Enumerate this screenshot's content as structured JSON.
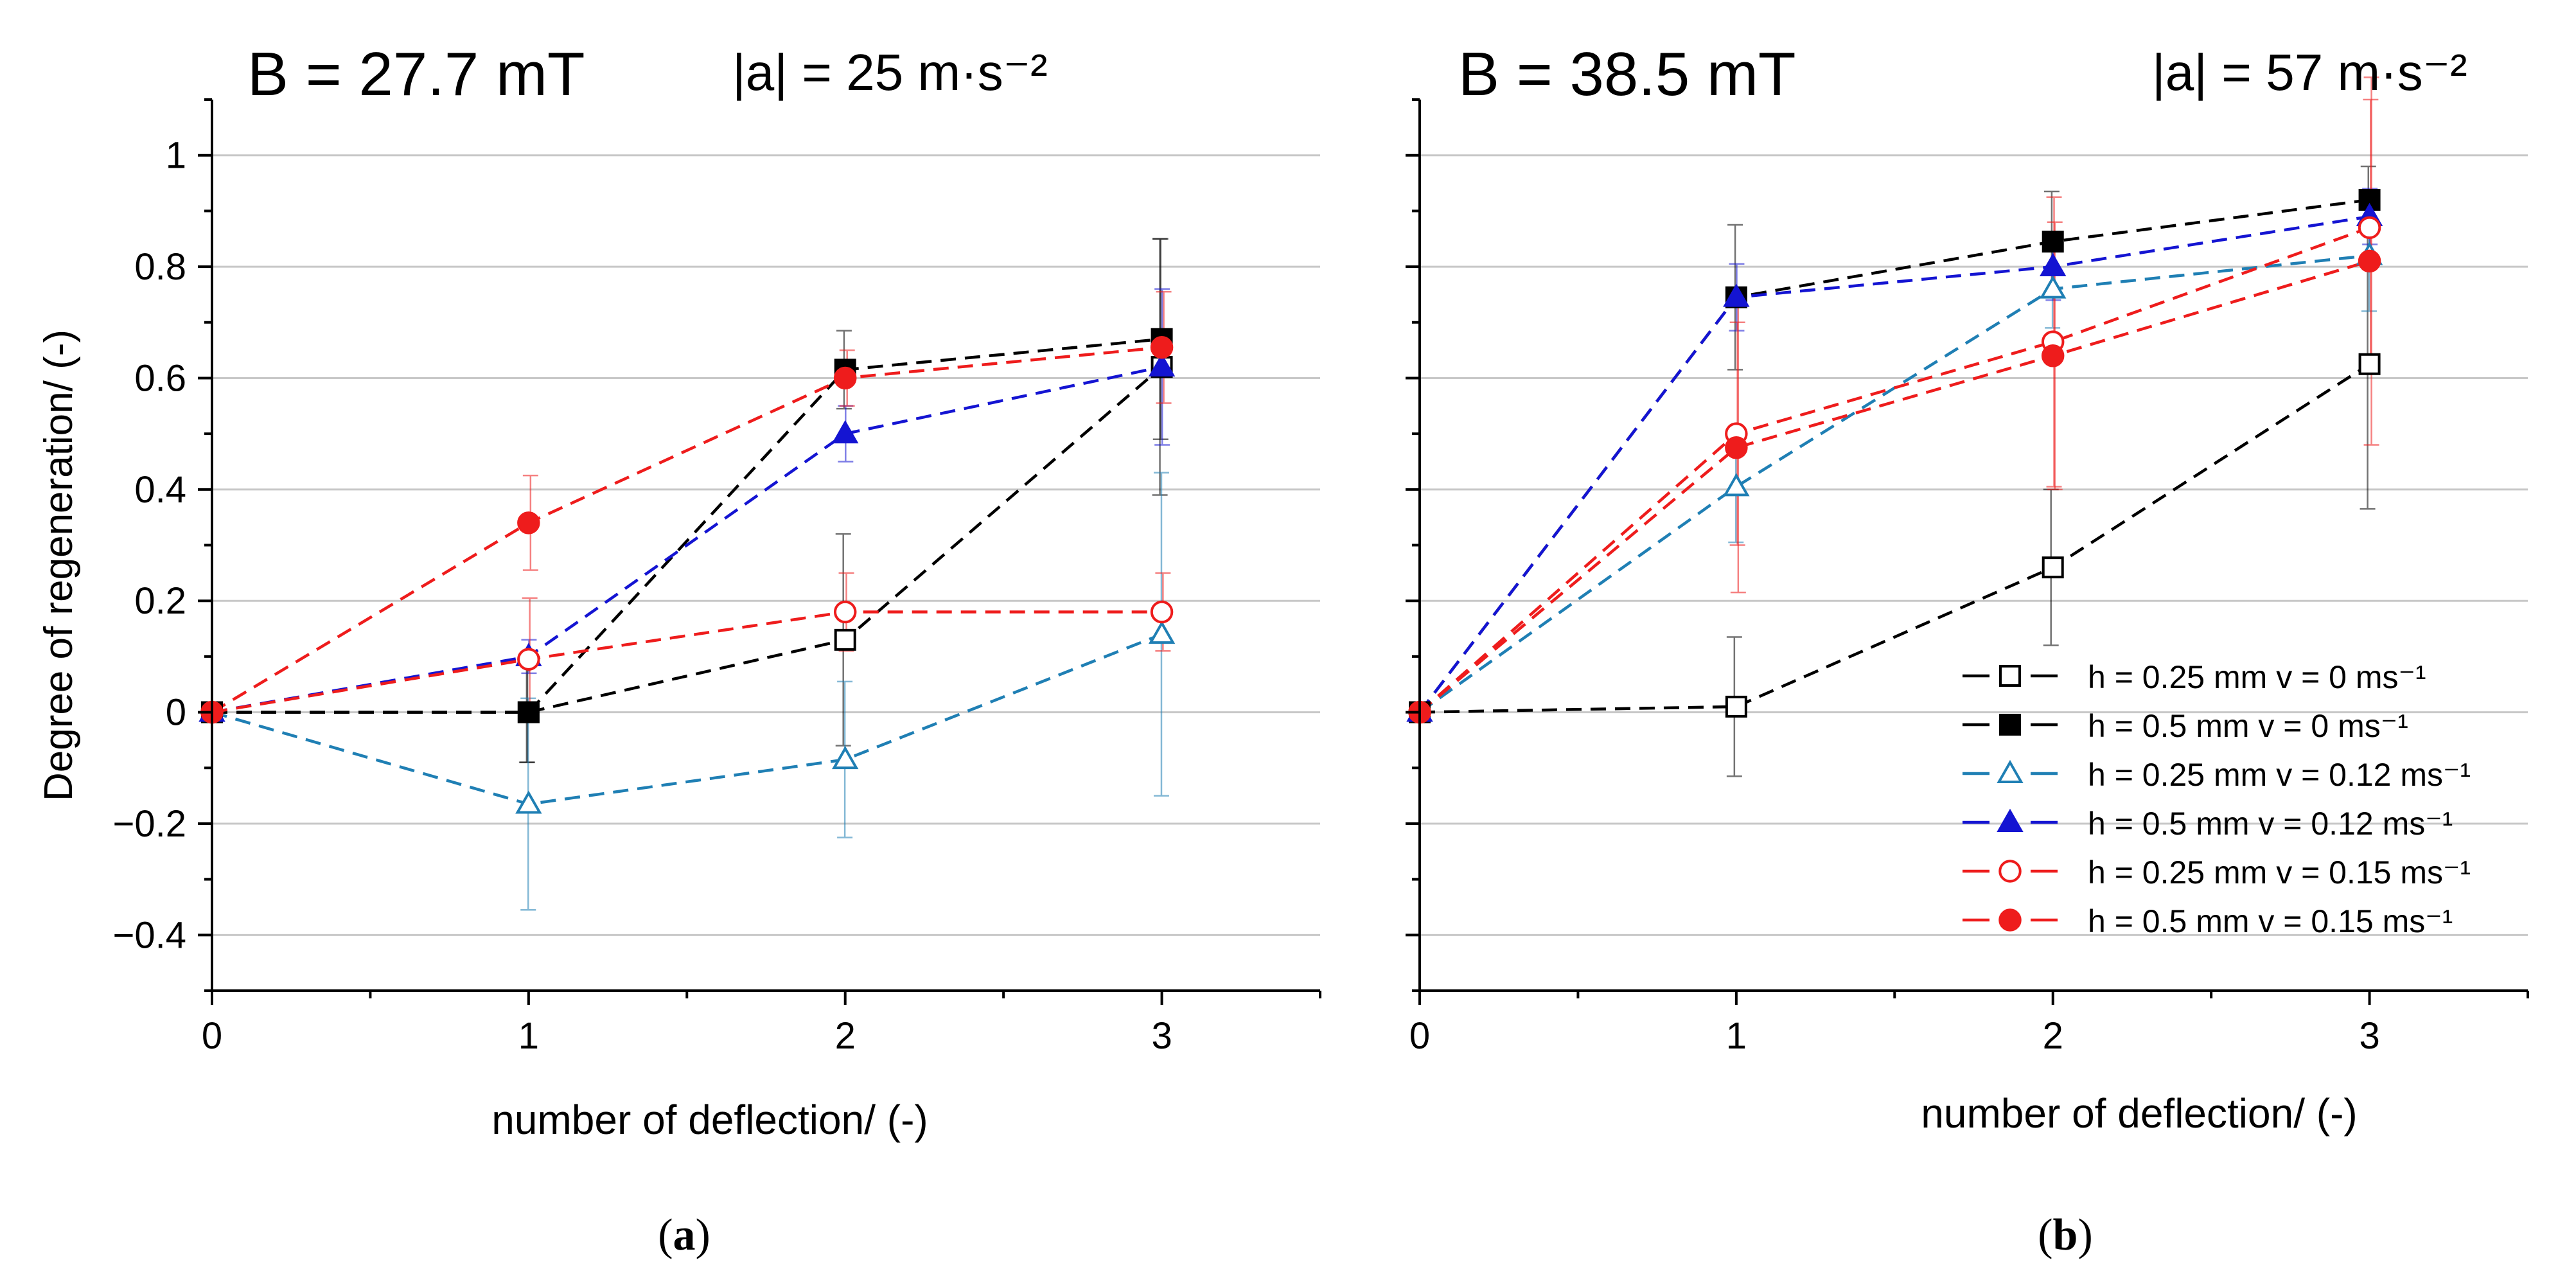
{
  "panels": [
    {
      "label_open": "(",
      "label_letter": "a",
      "label_close": ")"
    },
    {
      "label_open": "(",
      "label_letter": "b",
      "label_close": ")"
    }
  ],
  "chart_data": [
    {
      "type": "line",
      "title": "B = 27.7 mT",
      "subtitle": "|a| = 25 m·s⁻²",
      "xlabel": "number of deflection/ (-)",
      "ylabel": "Degree of regeneration/ (-)",
      "xlim": [
        0,
        3.5
      ],
      "ylim": [
        -0.5,
        1.1
      ],
      "xticks": [
        0,
        1,
        2,
        3
      ],
      "xtick_labels": [
        "0",
        "1",
        "2",
        "3"
      ],
      "yticks": [
        -0.4,
        -0.2,
        0,
        0.2,
        0.4,
        0.6,
        0.8,
        1
      ],
      "ytick_labels": [
        "−0.4",
        "−0.2",
        "0",
        "0.2",
        "0.4",
        "0.6",
        "0.8",
        "1"
      ],
      "grid": "horizontal",
      "legend": "none",
      "x": [
        0,
        1,
        2,
        3
      ],
      "series": [
        {
          "name": "h = 0.25 mm v = 0 ms⁻¹",
          "color": "#000000",
          "marker": "square",
          "filled": false,
          "values": [
            0,
            0,
            0.13,
            0.62
          ],
          "errors": [
            0,
            0.09,
            0.19,
            0.23
          ]
        },
        {
          "name": "h = 0.5 mm v = 0 ms⁻¹",
          "color": "#000000",
          "marker": "square",
          "filled": true,
          "values": [
            0,
            0,
            0.615,
            0.67
          ],
          "errors": [
            0,
            0.09,
            0.07,
            0.18
          ]
        },
        {
          "name": "h = 0.25 mm v = 0.12 ms⁻¹",
          "color": "#1f7fb4",
          "marker": "triangle",
          "filled": false,
          "values": [
            0,
            -0.165,
            -0.085,
            0.14
          ],
          "errors": [
            0,
            0.19,
            0.14,
            0.29
          ]
        },
        {
          "name": "h = 0.5 mm v = 0.12 ms⁻¹",
          "color": "#1414d2",
          "marker": "triangle",
          "filled": true,
          "values": [
            0,
            0.1,
            0.5,
            0.62
          ],
          "errors": [
            0,
            0.03,
            0.05,
            0.14
          ]
        },
        {
          "name": "h = 0.25 mm v = 0.15 ms⁻¹",
          "color": "#ee1c1c",
          "marker": "circle",
          "filled": false,
          "values": [
            0,
            0.095,
            0.18,
            0.18
          ],
          "errors": [
            0,
            0.11,
            0.07,
            0.07
          ]
        },
        {
          "name": "h = 0.5 mm v = 0.15 ms⁻¹",
          "color": "#ee1c1c",
          "marker": "circle",
          "filled": true,
          "values": [
            0,
            0.34,
            0.6,
            0.655
          ],
          "errors": [
            0,
            0.085,
            0.05,
            0.1
          ]
        }
      ]
    },
    {
      "type": "line",
      "title": "B = 38.5 mT",
      "subtitle": "|a| = 57 m·s⁻²",
      "xlabel": "number of deflection/ (-)",
      "ylabel": "",
      "xlim": [
        0,
        3.5
      ],
      "ylim": [
        -0.5,
        1.1
      ],
      "xticks": [
        0,
        1,
        2,
        3
      ],
      "xtick_labels": [
        "0",
        "1",
        "2",
        "3"
      ],
      "yticks": [
        -0.4,
        -0.2,
        0,
        0.2,
        0.4,
        0.6,
        0.8,
        1
      ],
      "ytick_labels": [
        "",
        "",
        "",
        "",
        "",
        "",
        "",
        ""
      ],
      "grid": "horizontal",
      "legend": "bottom-right",
      "x": [
        0,
        1,
        2,
        3
      ],
      "series": [
        {
          "name": "h = 0.25 mm v = 0 ms⁻¹",
          "color": "#000000",
          "marker": "square",
          "filled": false,
          "values": [
            0,
            0.01,
            0.26,
            0.625
          ],
          "errors": [
            0,
            0.125,
            0.14,
            0.26
          ]
        },
        {
          "name": "h = 0.5 mm v = 0 ms⁻¹",
          "color": "#000000",
          "marker": "square",
          "filled": true,
          "values": [
            0,
            0.745,
            0.845,
            0.92
          ],
          "errors": [
            0,
            0.13,
            0.09,
            0.06
          ]
        },
        {
          "name": "h = 0.25 mm v = 0.12 ms⁻¹",
          "color": "#1f7fb4",
          "marker": "triangle",
          "filled": false,
          "values": [
            0,
            0.405,
            0.76,
            0.82
          ],
          "errors": [
            0,
            0.1,
            0.07,
            0.1
          ]
        },
        {
          "name": "h = 0.5 mm v = 0.12 ms⁻¹",
          "color": "#1414d2",
          "marker": "triangle",
          "filled": true,
          "values": [
            0,
            0.745,
            0.8,
            0.89
          ],
          "errors": [
            0,
            0.06,
            0.06,
            0.05
          ]
        },
        {
          "name": "h = 0.25 mm v = 0.15 ms⁻¹",
          "color": "#ee1c1c",
          "marker": "circle",
          "filled": false,
          "values": [
            0,
            0.5,
            0.665,
            0.87
          ],
          "errors": [
            0,
            0.2,
            0.26,
            0.23
          ]
        },
        {
          "name": "h = 0.5 mm v = 0.15 ms⁻¹",
          "color": "#ee1c1c",
          "marker": "circle",
          "filled": true,
          "values": [
            0,
            0.475,
            0.64,
            0.81
          ],
          "errors": [
            0,
            0.26,
            0.24,
            0.33
          ]
        }
      ]
    }
  ]
}
